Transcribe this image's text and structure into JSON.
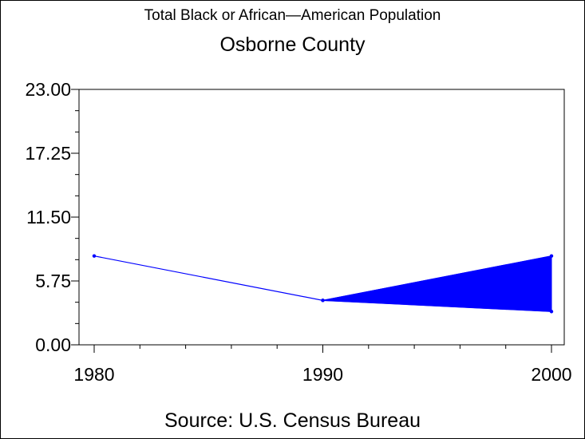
{
  "chart_data": {
    "type": "line",
    "title": "Total Black or African—American Population",
    "subtitle": "Osborne County",
    "footnote": "Source: U.S. Census Bureau",
    "xlabel": "",
    "ylabel": "",
    "x": [
      1980,
      1990,
      2000
    ],
    "x_ticks": [
      "1980",
      "1990",
      "2000"
    ],
    "xlim": [
      1980,
      2000
    ],
    "ylim": [
      0,
      23
    ],
    "y_ticks": [
      "0.00",
      "5.75",
      "11.50",
      "17.25",
      "23.00"
    ],
    "series": [
      {
        "values": [
          8.0,
          4.0,
          8.0
        ]
      },
      {
        "values": [
          null,
          4.0,
          3.0
        ]
      }
    ],
    "fill_between": {
      "x_from": 1990,
      "x_to": 2000,
      "color": "#0000ff"
    },
    "line_color": "#0000ff",
    "grid": false,
    "legend": "none"
  }
}
